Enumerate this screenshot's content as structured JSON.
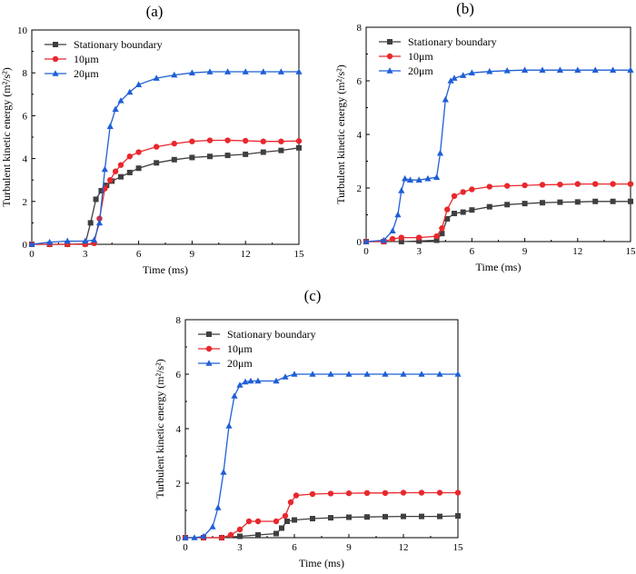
{
  "chart_data": [
    {
      "type": "line",
      "panel_label": "(a)",
      "xlabel": "Time (ms)",
      "ylabel": "Turbulent kinetic energy (m²/s²)",
      "xlim": [
        0,
        15
      ],
      "ylim": [
        0,
        10
      ],
      "xticks": [
        0,
        3,
        6,
        9,
        12,
        15
      ],
      "yticks": [
        0,
        2,
        4,
        6,
        8,
        10
      ],
      "legend_position": "top-left",
      "series": [
        {
          "name": "Stationary boundary",
          "color": "#3f3f3f",
          "marker": "square",
          "x": [
            0,
            1,
            2,
            3,
            3.3,
            3.6,
            3.9,
            4.2,
            4.5,
            5,
            5.5,
            6,
            7,
            8,
            9,
            10,
            11,
            12,
            13,
            14,
            15
          ],
          "y": [
            0,
            0,
            0,
            0.02,
            1.0,
            2.1,
            2.5,
            2.75,
            2.95,
            3.15,
            3.35,
            3.55,
            3.8,
            3.95,
            4.05,
            4.1,
            4.15,
            4.2,
            4.3,
            4.38,
            4.5
          ]
        },
        {
          "name": "10μm",
          "color": "#e8282d",
          "marker": "circle",
          "x": [
            0,
            1,
            2,
            3,
            3.5,
            3.8,
            4.1,
            4.4,
            4.7,
            5,
            5.5,
            6,
            7,
            8,
            9,
            10,
            11,
            12,
            13,
            14,
            15
          ],
          "y": [
            0,
            0,
            0,
            0,
            0.05,
            1.2,
            2.6,
            3.0,
            3.4,
            3.7,
            4.1,
            4.3,
            4.55,
            4.7,
            4.8,
            4.85,
            4.85,
            4.83,
            4.8,
            4.8,
            4.82
          ]
        },
        {
          "name": "20μm",
          "color": "#1f5fd6",
          "marker": "triangle",
          "x": [
            0,
            1,
            2,
            3,
            3.5,
            3.8,
            4.1,
            4.4,
            4.7,
            5,
            5.5,
            6,
            7,
            8,
            9,
            10,
            11,
            12,
            13,
            14,
            15
          ],
          "y": [
            0,
            0.1,
            0.15,
            0.15,
            0.2,
            1.0,
            3.5,
            5.5,
            6.3,
            6.7,
            7.1,
            7.45,
            7.75,
            7.9,
            8.0,
            8.05,
            8.05,
            8.05,
            8.05,
            8.05,
            8.05
          ]
        }
      ]
    },
    {
      "type": "line",
      "panel_label": "(b)",
      "xlabel": "Time (ms)",
      "ylabel": "Turbulent kinetic energy (m²/s²)",
      "xlim": [
        0,
        15
      ],
      "ylim": [
        0,
        8
      ],
      "xticks": [
        0,
        3,
        6,
        9,
        12,
        15
      ],
      "yticks": [
        0,
        2,
        4,
        6,
        8
      ],
      "legend_position": "top-left",
      "series": [
        {
          "name": "Stationary boundary",
          "color": "#3f3f3f",
          "marker": "square",
          "x": [
            0,
            1,
            2,
            3,
            4,
            4.3,
            4.6,
            5,
            5.5,
            6,
            7,
            8,
            9,
            10,
            11,
            12,
            13,
            14,
            15
          ],
          "y": [
            0,
            0,
            0,
            0.02,
            0.05,
            0.3,
            0.85,
            1.05,
            1.1,
            1.18,
            1.3,
            1.38,
            1.42,
            1.45,
            1.47,
            1.48,
            1.5,
            1.5,
            1.5
          ]
        },
        {
          "name": "10μm",
          "color": "#e8282d",
          "marker": "circle",
          "x": [
            0,
            1,
            1.5,
            2,
            3,
            4,
            4.3,
            4.6,
            5,
            5.5,
            6,
            7,
            8,
            9,
            10,
            11,
            12,
            13,
            14,
            15
          ],
          "y": [
            0,
            0,
            0.1,
            0.15,
            0.15,
            0.2,
            0.5,
            1.2,
            1.7,
            1.85,
            1.95,
            2.05,
            2.08,
            2.1,
            2.12,
            2.13,
            2.15,
            2.15,
            2.15,
            2.15
          ]
        },
        {
          "name": "20μm",
          "color": "#1f5fd6",
          "marker": "triangle",
          "x": [
            0,
            1,
            1.5,
            1.8,
            2.0,
            2.2,
            2.5,
            3,
            3.5,
            4.0,
            4.2,
            4.5,
            4.8,
            5,
            5.5,
            6,
            7,
            8,
            9,
            10,
            11,
            12,
            13,
            14,
            15
          ],
          "y": [
            0,
            0.05,
            0.4,
            1.0,
            1.9,
            2.35,
            2.3,
            2.3,
            2.35,
            2.4,
            3.3,
            5.3,
            6.0,
            6.1,
            6.2,
            6.3,
            6.35,
            6.38,
            6.4,
            6.4,
            6.4,
            6.4,
            6.4,
            6.4,
            6.4
          ]
        }
      ]
    },
    {
      "type": "line",
      "panel_label": "(c)",
      "xlabel": "Time (ms)",
      "ylabel": "Turbulent kinetic energy (m²/s²)",
      "xlim": [
        0,
        15
      ],
      "ylim": [
        0,
        8
      ],
      "xticks": [
        0,
        3,
        6,
        9,
        12,
        15
      ],
      "yticks": [
        0,
        2,
        4,
        6,
        8
      ],
      "legend_position": "top-left",
      "series": [
        {
          "name": "Stationary boundary",
          "color": "#3f3f3f",
          "marker": "square",
          "x": [
            0,
            1,
            2,
            3,
            4,
            5,
            5.3,
            5.6,
            6,
            7,
            8,
            9,
            10,
            11,
            12,
            13,
            14,
            15
          ],
          "y": [
            0,
            0,
            0,
            0.05,
            0.1,
            0.15,
            0.35,
            0.6,
            0.65,
            0.7,
            0.73,
            0.75,
            0.76,
            0.77,
            0.78,
            0.78,
            0.78,
            0.8
          ]
        },
        {
          "name": "10μm",
          "color": "#e8282d",
          "marker": "circle",
          "x": [
            0,
            1,
            2,
            2.5,
            3,
            3.5,
            4,
            5,
            5.5,
            5.8,
            6.1,
            7,
            8,
            9,
            10,
            11,
            12,
            13,
            14,
            15
          ],
          "y": [
            0,
            0,
            0,
            0.1,
            0.3,
            0.6,
            0.6,
            0.6,
            0.8,
            1.3,
            1.55,
            1.6,
            1.62,
            1.63,
            1.64,
            1.64,
            1.65,
            1.65,
            1.65,
            1.65
          ]
        },
        {
          "name": "20μm",
          "color": "#1f5fd6",
          "marker": "triangle",
          "x": [
            0,
            0.5,
            1,
            1.5,
            1.8,
            2.1,
            2.4,
            2.7,
            3.0,
            3.3,
            3.6,
            4,
            5,
            5.5,
            6,
            7,
            8,
            9,
            10,
            11,
            12,
            13,
            14,
            15
          ],
          "y": [
            0,
            0,
            0.05,
            0.4,
            1.1,
            2.4,
            4.1,
            5.2,
            5.6,
            5.72,
            5.75,
            5.75,
            5.75,
            5.9,
            6.0,
            6.0,
            6.0,
            6.0,
            6.0,
            6.0,
            6.0,
            6.0,
            6.0,
            6.0
          ]
        }
      ]
    }
  ]
}
